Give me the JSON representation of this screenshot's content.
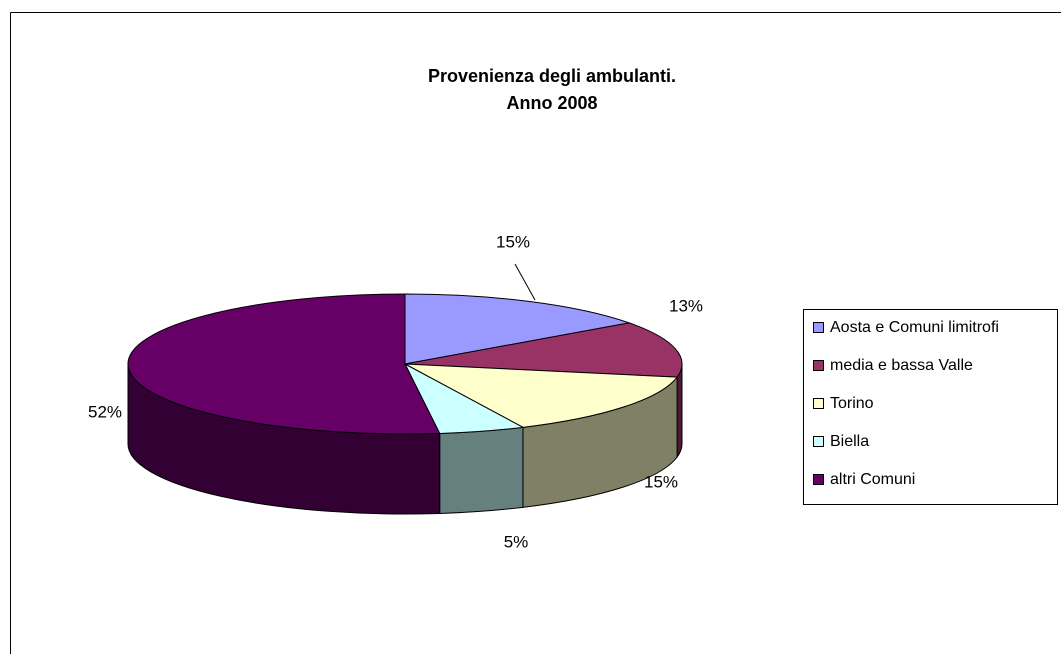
{
  "chart_data": {
    "type": "pie",
    "title": "Provenienza degli ambulanti.",
    "subtitle": "Anno 2008",
    "categories": [
      "Aosta e Comuni limitrofi",
      "media e bassa Valle",
      "Torino",
      "Biella",
      "altri Comuni"
    ],
    "values": [
      15,
      13,
      15,
      5,
      52
    ],
    "value_labels": [
      "15%",
      "13%",
      "15%",
      "5%",
      "52%"
    ],
    "colors": [
      "#9999ff",
      "#993366",
      "#ffffcc",
      "#ccffff",
      "#660066"
    ],
    "legend": "right"
  }
}
